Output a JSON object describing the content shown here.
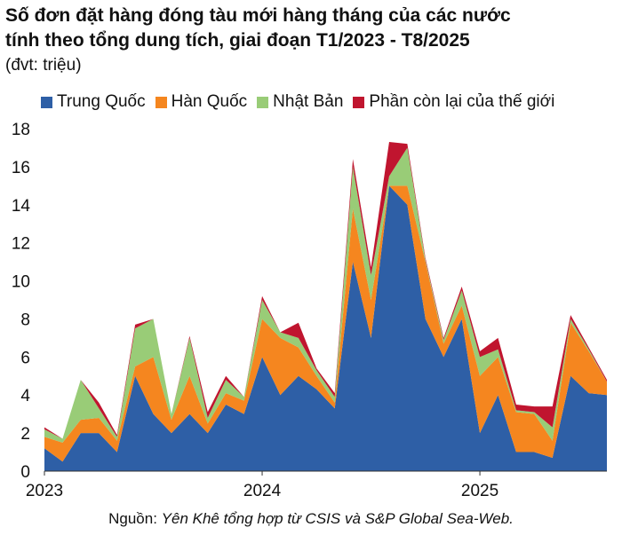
{
  "title_line1": "Số đơn đặt hàng đóng tàu mới hàng tháng của các nước",
  "title_line2": "tính theo tổng dung tích, giai đoạn T1/2023 - T8/2025",
  "unit": "(đvt: triệu)",
  "source_label": "Nguồn:",
  "source_text": "Yên Khê tổng hợp từ CSIS và S&P Global Sea-Web.",
  "chart_data": {
    "type": "area",
    "stacked": true,
    "x": [
      "2023-01",
      "2023-02",
      "2023-03",
      "2023-04",
      "2023-05",
      "2023-06",
      "2023-07",
      "2023-08",
      "2023-09",
      "2023-10",
      "2023-11",
      "2023-12",
      "2024-01",
      "2024-02",
      "2024-03",
      "2024-04",
      "2024-05",
      "2024-06",
      "2024-07",
      "2024-08",
      "2024-09",
      "2024-10",
      "2024-11",
      "2024-12",
      "2025-01",
      "2025-02",
      "2025-03",
      "2025-04",
      "2025-05",
      "2025-06",
      "2025-07",
      "2025-08"
    ],
    "xticks": [
      "2023",
      "2024",
      "2025"
    ],
    "yticks": [
      0,
      2,
      4,
      6,
      8,
      10,
      12,
      14,
      16,
      18
    ],
    "ylim": [
      0,
      18
    ],
    "grid": false,
    "legend_position": "top",
    "series": [
      {
        "name": "Trung Quốc",
        "color": "#2e5fa6",
        "values": [
          1.2,
          0.5,
          2.0,
          2.0,
          1.0,
          5.0,
          3.0,
          2.0,
          3.0,
          2.0,
          3.5,
          3.0,
          6.0,
          4.0,
          5.0,
          4.3,
          3.3,
          11.0,
          7.0,
          15.0,
          14.0,
          8.0,
          6.0,
          8.0,
          2.0,
          4.0,
          1.0,
          1.0,
          0.7,
          5.0,
          4.1,
          4.0
        ]
      },
      {
        "name": "Hàn Quốc",
        "color": "#f5861f",
        "values": [
          0.6,
          1.0,
          0.7,
          0.8,
          0.6,
          0.5,
          3.0,
          0.7,
          2.0,
          0.5,
          0.6,
          0.7,
          2.0,
          3.0,
          1.5,
          0.7,
          0.3,
          2.8,
          2.0,
          0.0,
          1.0,
          3.0,
          0.7,
          0.7,
          3.0,
          2.0,
          2.1,
          2.0,
          0.9,
          2.8,
          2.2,
          0.7
        ]
      },
      {
        "name": "Nhật Bản",
        "color": "#99cc77",
        "values": [
          0.4,
          0.2,
          2.1,
          0.5,
          0.2,
          2.0,
          2.0,
          0.3,
          2.0,
          0.3,
          0.7,
          0.2,
          1.0,
          0.3,
          0.5,
          0.3,
          0.3,
          2.2,
          1.3,
          0.5,
          2.0,
          0.1,
          0.2,
          0.8,
          1.0,
          0.4,
          0.1,
          0.1,
          0.7,
          0.2,
          0.1,
          0.0
        ]
      },
      {
        "name": "Phần còn lại của thế giới",
        "color": "#c0152f",
        "values": [
          0.1,
          0.0,
          0.0,
          0.3,
          0.1,
          0.2,
          0.0,
          0.0,
          0.1,
          0.3,
          0.2,
          0.0,
          0.2,
          0.0,
          0.8,
          0.1,
          0.2,
          0.4,
          0.4,
          1.8,
          0.2,
          0.1,
          0.1,
          0.2,
          0.3,
          0.6,
          0.3,
          0.3,
          1.1,
          0.2,
          0.1,
          0.1
        ]
      }
    ]
  }
}
